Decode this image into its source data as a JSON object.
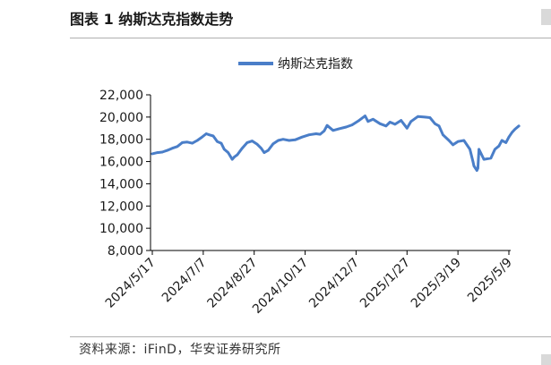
{
  "figure_title": "图表 1 纳斯达克指数走势",
  "source_note": "资料来源：iFinD，华安证券研究所",
  "colors": {
    "series": "#4a7ec8",
    "axis": "#000000",
    "text": "#1a1a1a"
  },
  "chart_data": {
    "type": "line",
    "title": "",
    "xlabel": "",
    "ylabel": "",
    "ylim": [
      8000,
      22000
    ],
    "yticks": [
      8000,
      10000,
      12000,
      14000,
      16000,
      18000,
      20000,
      22000
    ],
    "ytick_labels": [
      "8,000",
      "10,000",
      "12,000",
      "14,000",
      "16,000",
      "18,000",
      "20,000",
      "22,000"
    ],
    "xticks": [
      "2024/5/17",
      "2024/7/7",
      "2024/8/27",
      "2024/10/17",
      "2024/12/7",
      "2025/1/27",
      "2025/3/19",
      "2025/5/9"
    ],
    "grid": false,
    "legend": "top-center",
    "series": [
      {
        "name": "纳斯达克指数",
        "x": [
          "2024/5/17",
          "2024/5/22",
          "2024/5/27",
          "2024/6/1",
          "2024/6/6",
          "2024/6/11",
          "2024/6/16",
          "2024/6/21",
          "2024/6/26",
          "2024/7/1",
          "2024/7/5",
          "2024/7/10",
          "2024/7/13",
          "2024/7/17",
          "2024/7/21",
          "2024/7/25",
          "2024/7/28",
          "2024/8/1",
          "2024/8/5",
          "2024/8/7",
          "2024/8/10",
          "2024/8/15",
          "2024/8/20",
          "2024/8/25",
          "2024/8/30",
          "2024/9/3",
          "2024/9/6",
          "2024/9/10",
          "2024/9/15",
          "2024/9/20",
          "2024/9/25",
          "2024/10/1",
          "2024/10/7",
          "2024/10/14",
          "2024/10/21",
          "2024/10/28",
          "2024/11/1",
          "2024/11/5",
          "2024/11/8",
          "2024/11/14",
          "2024/11/20",
          "2024/11/27",
          "2024/12/3",
          "2024/12/10",
          "2024/12/16",
          "2024/12/19",
          "2024/12/24",
          "2024/12/31",
          "2025/1/6",
          "2025/1/10",
          "2025/1/15",
          "2025/1/21",
          "2025/1/27",
          "2025/1/31",
          "2025/2/7",
          "2025/2/14",
          "2025/2/19",
          "2025/2/24",
          "2025/2/28",
          "2025/3/4",
          "2025/3/10",
          "2025/3/14",
          "2025/3/19",
          "2025/3/25",
          "2025/3/31",
          "2025/4/3",
          "2025/4/4",
          "2025/4/7",
          "2025/4/8",
          "2025/4/9",
          "2025/4/14",
          "2025/4/21",
          "2025/4/25",
          "2025/4/29",
          "2025/5/2",
          "2025/5/6",
          "2025/5/9",
          "2025/5/12",
          "2025/5/15",
          "2025/5/19"
        ],
        "values": [
          16700,
          16800,
          16850,
          17000,
          17200,
          17350,
          17700,
          17750,
          17650,
          17900,
          18150,
          18500,
          18400,
          18300,
          17800,
          17650,
          17100,
          16800,
          16200,
          16400,
          16600,
          17200,
          17700,
          17850,
          17550,
          17200,
          16800,
          17000,
          17600,
          17900,
          18000,
          17900,
          17950,
          18200,
          18400,
          18500,
          18450,
          18750,
          19250,
          18800,
          18950,
          19100,
          19300,
          19700,
          20100,
          19600,
          19800,
          19400,
          19200,
          19550,
          19350,
          19700,
          19000,
          19600,
          20050,
          20000,
          19950,
          19400,
          19200,
          18400,
          17900,
          17500,
          17800,
          17900,
          17100,
          16000,
          15600,
          15200,
          15400,
          17100,
          16200,
          16300,
          17100,
          17400,
          17900,
          17700,
          18200,
          18600,
          18900,
          19200
        ]
      }
    ]
  }
}
